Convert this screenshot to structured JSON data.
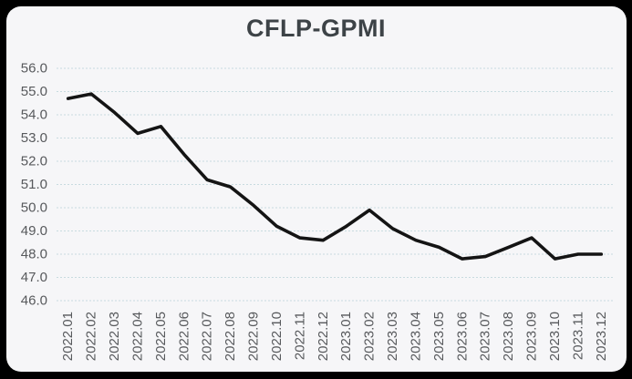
{
  "window": {
    "frame_color": "#000000",
    "card_color": "#f6f6f8"
  },
  "chart": {
    "title": "CFLP-GPMI"
  },
  "chart_data": {
    "type": "line",
    "title": "CFLP-GPMI",
    "categories": [
      "2022.01",
      "2022.02",
      "2022.03",
      "2022.04",
      "2022.05",
      "2022.06",
      "2022.07",
      "2022.08",
      "2022.09",
      "2022.10",
      "2022.11",
      "2022.12",
      "2023.01",
      "2023.02",
      "2023.03",
      "2023.04",
      "2023.05",
      "2023.06",
      "2023.07",
      "2023.08",
      "2023.09",
      "2023.10",
      "2023.11",
      "2023.12"
    ],
    "series": [
      {
        "name": "CFLP-GPMI",
        "color": "#141414",
        "values": [
          54.7,
          54.9,
          54.1,
          53.2,
          53.5,
          52.3,
          51.2,
          50.9,
          50.1,
          49.2,
          48.7,
          48.6,
          49.2,
          49.9,
          49.1,
          48.6,
          48.3,
          47.8,
          47.9,
          48.3,
          48.7,
          47.8,
          48.0,
          48.0
        ]
      }
    ],
    "xlabel": "",
    "ylabel": "",
    "ylim": [
      46.0,
      56.0
    ],
    "ytick_step": 1.0,
    "ytick_labels": [
      "56.0",
      "55.0",
      "54.0",
      "53.0",
      "52.0",
      "51.0",
      "50.0",
      "49.0",
      "48.0",
      "47.0",
      "46.0"
    ],
    "grid": "horizontal-dashed",
    "gridline_color": "#c8dbe0",
    "tick_label_color": "#57595c",
    "x_tick_rotation_deg": 90,
    "legend": "none",
    "markers": "none"
  }
}
